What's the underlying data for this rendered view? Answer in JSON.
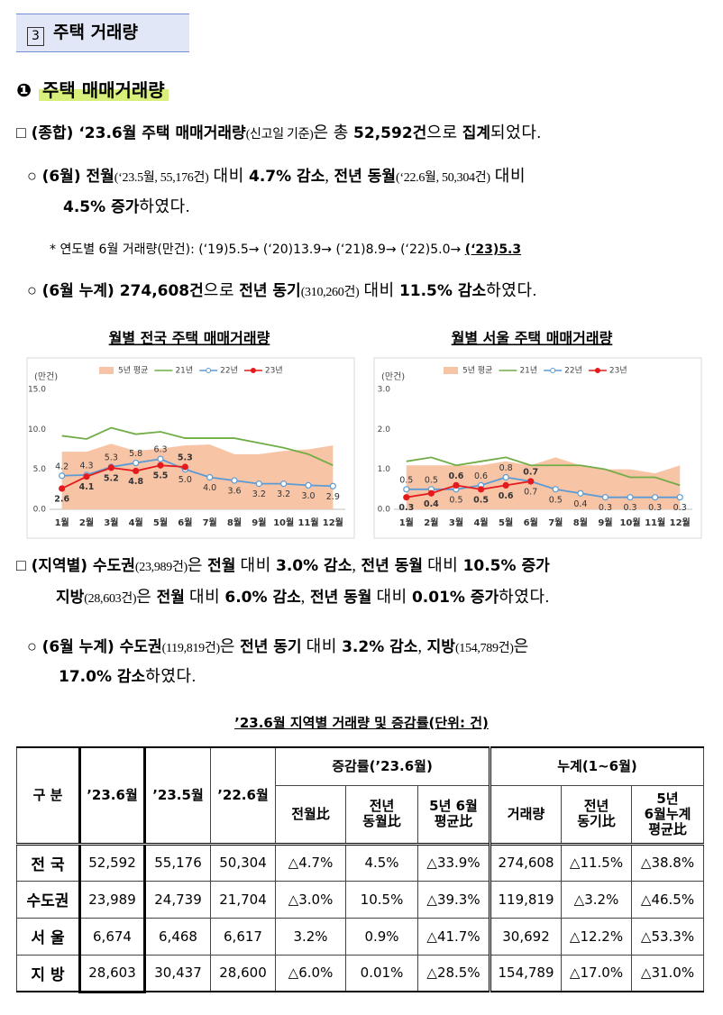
{
  "section": {
    "number": "3",
    "title": "주택 거래량"
  },
  "heading": {
    "number": "❶",
    "title": "주택 매매거래량"
  },
  "paragraphs": [
    [
      "□ ",
      "(종합)",
      " ‘23.6월 주택 매매거래량",
      "(신고일 기준)",
      "은 총 ",
      "52,592건",
      "으로 ",
      "집계",
      "되었다."
    ],
    [
      "○ ",
      "(6월) 전월",
      "(‘23.5월, 55,176건)",
      " 대비 ",
      "4.7% 감소",
      ", ",
      "전년 동월",
      "(‘22.6월, 50,304건)",
      " 대비"
    ],
    [
      "4.5% 증가",
      "하였다."
    ],
    [
      "*  연도별 6월 거래량(만건): (‘19)5.5→ (‘20)13.9→ (‘21)8.9→ (‘22)5.0→ ",
      "(‘23)5.3"
    ],
    [
      "○ ",
      "(6월 누계) 274,608건",
      "으로 ",
      "전년 동기",
      "(310,260건)",
      " 대비 ",
      "11.5% 감소",
      "하였다."
    ],
    [
      "□ ",
      "(지역별) 수도권",
      "(23,989건)",
      "은 ",
      "전월",
      " 대비 ",
      "3.0% 감소",
      ", ",
      "전년 동월",
      " 대비 ",
      "10.5% 증가"
    ],
    [
      "지방",
      "(28,603건)",
      "은 ",
      "전월",
      " 대비 ",
      "6.0% 감소",
      ", ",
      "전년 동월",
      " 대비 ",
      "0.01% 증가",
      "하였다."
    ],
    [
      "○ ",
      "(6월 누계) 수도권",
      "(119,819건)",
      "은 ",
      "전년 동기",
      " 대비 ",
      "3.2% 감소",
      ", ",
      "지방",
      "(154,789건)",
      "은"
    ],
    [
      "17.0% 감소",
      "하였다."
    ]
  ],
  "chart_data": [
    {
      "type": "line",
      "title": "월별 전국 주택 매매거래량",
      "ylabel": "(만건)",
      "legend": "top",
      "categories": [
        "1월",
        "2월",
        "3월",
        "4월",
        "5월",
        "6월",
        "7월",
        "8월",
        "9월",
        "10월",
        "11월",
        "12월"
      ],
      "ylim": [
        0,
        15
      ],
      "yticks": [
        {
          "value": 0,
          "label": "0.0"
        },
        {
          "value": 5,
          "label": "5.0"
        },
        {
          "value": 10,
          "label": "10.0"
        },
        {
          "value": 15,
          "label": "15.0"
        }
      ],
      "series": [
        {
          "name": "5년 평균",
          "type": "area",
          "color": "#f8c4a6",
          "values": [
            7.2,
            7.2,
            8.2,
            7.3,
            7.6,
            8.0,
            8.1,
            6.9,
            6.9,
            7.3,
            7.5,
            8.0
          ]
        },
        {
          "name": "21년",
          "color": "#70ad47",
          "values": [
            9.2,
            8.8,
            10.2,
            9.4,
            9.7,
            8.9,
            8.9,
            8.9,
            8.3,
            7.7,
            6.9,
            5.5
          ]
        },
        {
          "name": "22년",
          "color": "#5b9bd5",
          "marker": "hollow",
          "data_labels": true,
          "values": [
            4.2,
            4.3,
            5.3,
            5.8,
            6.3,
            5.0,
            4.0,
            3.6,
            3.2,
            3.2,
            3.0,
            2.9
          ],
          "value_labels": [
            "4.2",
            "4.3",
            "5.3",
            "5.8",
            "6.3",
            "5.0",
            "4.0",
            "3.6",
            "3.2",
            "3.2",
            "3.0",
            "2.9"
          ]
        },
        {
          "name": "23년",
          "color": "#e41a1c",
          "marker": "filled",
          "data_labels": true,
          "values": [
            2.6,
            4.1,
            5.2,
            4.8,
            5.5,
            5.3,
            null,
            null,
            null,
            null,
            null,
            null
          ]
        }
      ]
    },
    {
      "type": "line",
      "title": "월별 서울 주택 매매거래량",
      "ylabel": "(만건)",
      "legend": "top",
      "categories": [
        "1월",
        "2월",
        "3월",
        "4월",
        "5월",
        "6월",
        "7월",
        "8월",
        "9월",
        "10월",
        "11월",
        "12월"
      ],
      "ylim": [
        0,
        3
      ],
      "yticks": [
        {
          "value": 0,
          "label": "0.0"
        },
        {
          "value": 1,
          "label": "1.0"
        },
        {
          "value": 2,
          "label": "2.0"
        },
        {
          "value": 3,
          "label": "3.0"
        }
      ],
      "series": [
        {
          "name": "5년 평균",
          "type": "area",
          "color": "#f8c4a6",
          "values": [
            1.1,
            1.1,
            1.1,
            1.1,
            1.2,
            1.1,
            1.3,
            1.1,
            1.0,
            1.0,
            0.9,
            1.1
          ]
        },
        {
          "name": "21년",
          "color": "#70ad47",
          "values": [
            1.2,
            1.3,
            1.1,
            1.2,
            1.3,
            1.1,
            1.1,
            1.1,
            1.0,
            0.8,
            0.8,
            0.6
          ]
        },
        {
          "name": "22년",
          "color": "#5b9bd5",
          "marker": "hollow",
          "data_labels": true,
          "values": [
            0.5,
            0.5,
            0.5,
            0.6,
            0.8,
            0.7,
            0.5,
            0.4,
            0.3,
            0.3,
            0.3,
            0.3
          ]
        },
        {
          "name": "23년",
          "color": "#e41a1c",
          "marker": "filled",
          "data_labels": true,
          "values": [
            0.3,
            0.4,
            0.6,
            0.5,
            0.6,
            0.7,
            null,
            null,
            null,
            null,
            null,
            null
          ]
        }
      ]
    }
  ],
  "table": {
    "caption": "’23.6월 지역별 거래량 및 증감률(단위: 건)",
    "head": [
      "구 분",
      "’23.6월",
      "’23.5월",
      "’22.6월",
      "증감률(’23.6월)",
      "누계(1~6월)"
    ],
    "subhead": [
      "전월比",
      "전년\n동월比",
      "5년 6월\n평균比",
      "거래량",
      "전년\n동기比",
      "5년\n6월누계\n평균比"
    ],
    "rows": [
      [
        "전 국",
        "52,592",
        "55,176",
        "50,304",
        "△4.7%",
        "4.5%",
        "△33.9%",
        "274,608",
        "△11.5%",
        "△38.8%"
      ],
      [
        "수도권",
        "23,989",
        "24,739",
        "21,704",
        "△3.0%",
        "10.5%",
        "△39.3%",
        "119,819",
        "△3.2%",
        "△46.5%"
      ],
      [
        "서 울",
        "6,674",
        "6,468",
        "6,617",
        "3.2%",
        "0.9%",
        "△41.7%",
        "30,692",
        "△12.2%",
        "△53.3%"
      ],
      [
        "지 방",
        "28,603",
        "30,437",
        "28,600",
        "△6.0%",
        "0.01%",
        "△28.5%",
        "154,789",
        "△17.0%",
        "△31.0%"
      ]
    ]
  }
}
